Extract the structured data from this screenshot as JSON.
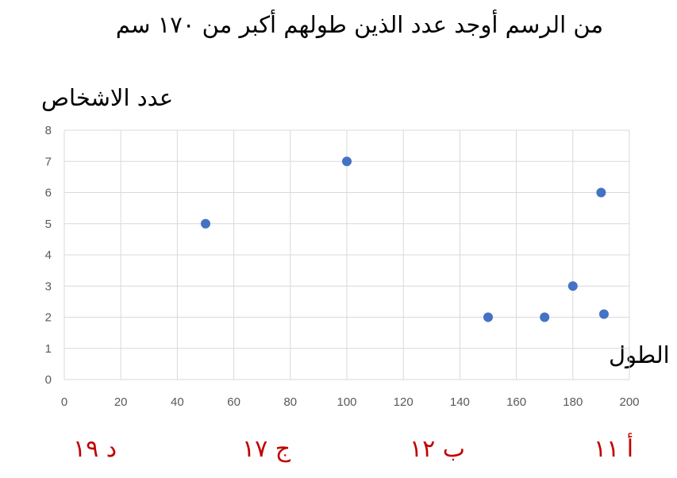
{
  "question": "من الرسم أوجد عدد الذين طولهم أكبر من ١٧٠ سم",
  "chart_data": {
    "type": "scatter",
    "xlabel": "الطول",
    "ylabel": "عدد الاشخاص",
    "xlim": [
      0,
      200
    ],
    "ylim": [
      0,
      8
    ],
    "xticks": [
      0,
      20,
      40,
      60,
      80,
      100,
      120,
      140,
      160,
      180,
      200
    ],
    "yticks": [
      0,
      1,
      2,
      3,
      4,
      5,
      6,
      7,
      8
    ],
    "grid": true,
    "points": [
      {
        "x": 50,
        "y": 5
      },
      {
        "x": 100,
        "y": 7
      },
      {
        "x": 150,
        "y": 2
      },
      {
        "x": 170,
        "y": 2
      },
      {
        "x": 180,
        "y": 3
      },
      {
        "x": 190,
        "y": 6
      },
      {
        "x": 191,
        "y": 2.1
      }
    ],
    "marker_color": "#4472c4",
    "grid_color": "#d9d9d9"
  },
  "choices": [
    {
      "text": "أ ١١"
    },
    {
      "text": "ب ١٢"
    },
    {
      "text": "ج ١٧"
    },
    {
      "text": "د ١٩"
    }
  ],
  "choice_color": "#c00000"
}
